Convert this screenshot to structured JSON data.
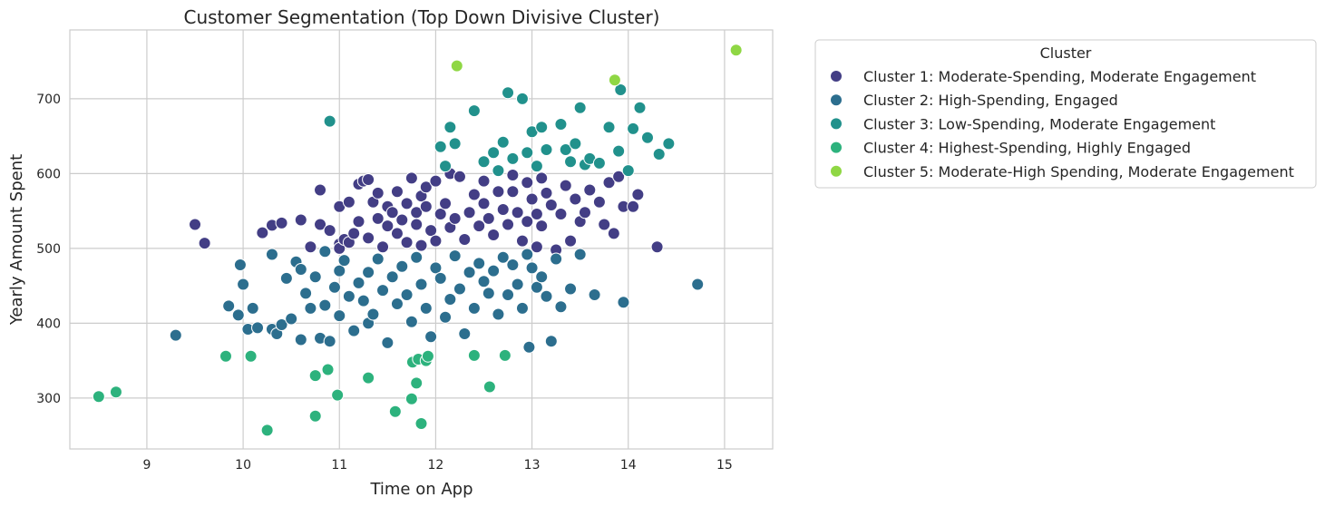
{
  "chart_data": {
    "type": "scatter",
    "title": "Customer Segmentation (Top Down Divisive Cluster)",
    "xlabel": "Time on App",
    "ylabel": "Yearly Amount Spent",
    "xlim": [
      8.2,
      15.5
    ],
    "ylim": [
      232,
      792
    ],
    "x_ticks": [
      "9",
      "10",
      "11",
      "12",
      "13",
      "14",
      "15"
    ],
    "y_ticks": [
      "300",
      "400",
      "500",
      "600",
      "700"
    ],
    "grid": true,
    "legend": {
      "title": "Cluster",
      "position": "outside-right-top"
    },
    "series": [
      {
        "name": "Cluster 1: Moderate-Spending, Moderate Engagement",
        "color": "#433e85",
        "points": [
          [
            9.5,
            532
          ],
          [
            9.6,
            507
          ],
          [
            10.2,
            521
          ],
          [
            10.3,
            531
          ],
          [
            10.4,
            534
          ],
          [
            10.6,
            538
          ],
          [
            10.7,
            502
          ],
          [
            10.8,
            532
          ],
          [
            10.8,
            578
          ],
          [
            10.9,
            524
          ],
          [
            11.0,
            506
          ],
          [
            11.0,
            556
          ],
          [
            11.0,
            500
          ],
          [
            11.05,
            512
          ],
          [
            11.1,
            562
          ],
          [
            11.1,
            508
          ],
          [
            11.15,
            520
          ],
          [
            11.2,
            586
          ],
          [
            11.2,
            536
          ],
          [
            11.25,
            590
          ],
          [
            11.3,
            592
          ],
          [
            11.3,
            514
          ],
          [
            11.35,
            562
          ],
          [
            11.4,
            574
          ],
          [
            11.4,
            540
          ],
          [
            11.45,
            502
          ],
          [
            11.5,
            556
          ],
          [
            11.5,
            530
          ],
          [
            11.55,
            548
          ],
          [
            11.6,
            576
          ],
          [
            11.6,
            520
          ],
          [
            11.65,
            538
          ],
          [
            11.7,
            560
          ],
          [
            11.7,
            508
          ],
          [
            11.75,
            594
          ],
          [
            11.8,
            548
          ],
          [
            11.8,
            532
          ],
          [
            11.85,
            570
          ],
          [
            11.85,
            504
          ],
          [
            11.9,
            582
          ],
          [
            11.9,
            556
          ],
          [
            11.95,
            524
          ],
          [
            12.0,
            590
          ],
          [
            12.0,
            510
          ],
          [
            12.05,
            546
          ],
          [
            12.1,
            560
          ],
          [
            12.15,
            600
          ],
          [
            12.15,
            528
          ],
          [
            12.2,
            540
          ],
          [
            12.25,
            596
          ],
          [
            12.3,
            512
          ],
          [
            12.35,
            548
          ],
          [
            12.4,
            572
          ],
          [
            12.45,
            530
          ],
          [
            12.5,
            590
          ],
          [
            12.5,
            560
          ],
          [
            12.55,
            540
          ],
          [
            12.6,
            518
          ],
          [
            12.65,
            576
          ],
          [
            12.7,
            552
          ],
          [
            12.75,
            532
          ],
          [
            12.8,
            598
          ],
          [
            12.8,
            576
          ],
          [
            12.85,
            548
          ],
          [
            12.9,
            510
          ],
          [
            12.95,
            588
          ],
          [
            12.95,
            536
          ],
          [
            13.0,
            566
          ],
          [
            13.05,
            546
          ],
          [
            13.05,
            502
          ],
          [
            13.1,
            594
          ],
          [
            13.1,
            530
          ],
          [
            13.15,
            574
          ],
          [
            13.2,
            558
          ],
          [
            13.25,
            498
          ],
          [
            13.3,
            546
          ],
          [
            13.35,
            584
          ],
          [
            13.4,
            510
          ],
          [
            13.45,
            566
          ],
          [
            13.5,
            536
          ],
          [
            13.55,
            548
          ],
          [
            13.6,
            578
          ],
          [
            13.7,
            562
          ],
          [
            13.75,
            532
          ],
          [
            13.8,
            588
          ],
          [
            13.85,
            520
          ],
          [
            13.9,
            596
          ],
          [
            13.95,
            556
          ],
          [
            14.05,
            556
          ],
          [
            14.1,
            572
          ],
          [
            14.3,
            502
          ]
        ]
      },
      {
        "name": "Cluster 2: High-Spending, Engaged",
        "color": "#2c6e8e",
        "points": [
          [
            9.3,
            384
          ],
          [
            9.85,
            423
          ],
          [
            9.95,
            411
          ],
          [
            9.97,
            478
          ],
          [
            10.0,
            452
          ],
          [
            10.05,
            392
          ],
          [
            10.1,
            420
          ],
          [
            10.15,
            394
          ],
          [
            10.3,
            392
          ],
          [
            10.3,
            492
          ],
          [
            10.35,
            386
          ],
          [
            10.4,
            398
          ],
          [
            10.45,
            460
          ],
          [
            10.5,
            406
          ],
          [
            10.55,
            482
          ],
          [
            10.6,
            472
          ],
          [
            10.6,
            378
          ],
          [
            10.65,
            440
          ],
          [
            10.7,
            420
          ],
          [
            10.75,
            462
          ],
          [
            10.8,
            380
          ],
          [
            10.85,
            496
          ],
          [
            10.85,
            424
          ],
          [
            10.9,
            376
          ],
          [
            10.95,
            448
          ],
          [
            11.0,
            410
          ],
          [
            11.0,
            470
          ],
          [
            11.05,
            484
          ],
          [
            11.1,
            436
          ],
          [
            11.15,
            390
          ],
          [
            11.2,
            454
          ],
          [
            11.25,
            430
          ],
          [
            11.3,
            468
          ],
          [
            11.3,
            400
          ],
          [
            11.35,
            412
          ],
          [
            11.4,
            486
          ],
          [
            11.45,
            444
          ],
          [
            11.5,
            374
          ],
          [
            11.55,
            462
          ],
          [
            11.6,
            426
          ],
          [
            11.65,
            476
          ],
          [
            11.7,
            438
          ],
          [
            11.75,
            402
          ],
          [
            11.8,
            488
          ],
          [
            11.85,
            452
          ],
          [
            11.9,
            420
          ],
          [
            11.95,
            382
          ],
          [
            12.0,
            474
          ],
          [
            12.05,
            460
          ],
          [
            12.1,
            408
          ],
          [
            12.15,
            432
          ],
          [
            12.2,
            490
          ],
          [
            12.25,
            446
          ],
          [
            12.3,
            386
          ],
          [
            12.35,
            468
          ],
          [
            12.4,
            420
          ],
          [
            12.45,
            480
          ],
          [
            12.5,
            456
          ],
          [
            12.55,
            440
          ],
          [
            12.6,
            470
          ],
          [
            12.65,
            412
          ],
          [
            12.7,
            488
          ],
          [
            12.75,
            438
          ],
          [
            12.8,
            478
          ],
          [
            12.85,
            452
          ],
          [
            12.9,
            420
          ],
          [
            12.95,
            492
          ],
          [
            12.97,
            368
          ],
          [
            13.0,
            474
          ],
          [
            13.05,
            448
          ],
          [
            13.1,
            462
          ],
          [
            13.15,
            436
          ],
          [
            13.2,
            376
          ],
          [
            13.25,
            486
          ],
          [
            13.3,
            422
          ],
          [
            13.4,
            446
          ],
          [
            13.5,
            492
          ],
          [
            13.65,
            438
          ],
          [
            13.95,
            428
          ],
          [
            14.72,
            452
          ]
        ]
      },
      {
        "name": "Cluster 3: Low-Spending, Moderate Engagement",
        "color": "#21918c",
        "points": [
          [
            10.9,
            670
          ],
          [
            12.05,
            636
          ],
          [
            12.1,
            610
          ],
          [
            12.15,
            662
          ],
          [
            12.2,
            640
          ],
          [
            12.4,
            684
          ],
          [
            12.5,
            616
          ],
          [
            12.6,
            628
          ],
          [
            12.65,
            604
          ],
          [
            12.7,
            642
          ],
          [
            12.75,
            708
          ],
          [
            12.8,
            620
          ],
          [
            12.9,
            700
          ],
          [
            12.95,
            628
          ],
          [
            13.0,
            656
          ],
          [
            13.05,
            610
          ],
          [
            13.1,
            662
          ],
          [
            13.15,
            632
          ],
          [
            13.3,
            666
          ],
          [
            13.35,
            632
          ],
          [
            13.4,
            616
          ],
          [
            13.45,
            640
          ],
          [
            13.5,
            688
          ],
          [
            13.55,
            612
          ],
          [
            13.6,
            620
          ],
          [
            13.7,
            614
          ],
          [
            13.8,
            662
          ],
          [
            13.9,
            630
          ],
          [
            13.92,
            712
          ],
          [
            14.0,
            604
          ],
          [
            14.05,
            660
          ],
          [
            14.12,
            688
          ],
          [
            14.2,
            648
          ],
          [
            14.32,
            626
          ],
          [
            14.42,
            640
          ]
        ]
      },
      {
        "name": "Cluster 4: Highest-Spending, Highly Engaged",
        "color": "#2db27d",
        "points": [
          [
            8.5,
            302
          ],
          [
            8.68,
            308
          ],
          [
            9.82,
            356
          ],
          [
            10.08,
            356
          ],
          [
            10.25,
            257
          ],
          [
            10.75,
            276
          ],
          [
            10.75,
            330
          ],
          [
            10.88,
            338
          ],
          [
            10.98,
            304
          ],
          [
            11.3,
            327
          ],
          [
            11.58,
            282
          ],
          [
            11.75,
            299
          ],
          [
            11.76,
            348
          ],
          [
            11.8,
            320
          ],
          [
            11.82,
            352
          ],
          [
            11.85,
            266
          ],
          [
            11.9,
            350
          ],
          [
            11.92,
            356
          ],
          [
            12.4,
            357
          ],
          [
            12.56,
            315
          ],
          [
            12.72,
            357
          ]
        ]
      },
      {
        "name": "Cluster 5: Moderate-High Spending, Moderate Engagement",
        "color": "#8fd744",
        "points": [
          [
            12.22,
            744
          ],
          [
            13.86,
            725
          ],
          [
            15.12,
            765
          ]
        ]
      }
    ]
  }
}
